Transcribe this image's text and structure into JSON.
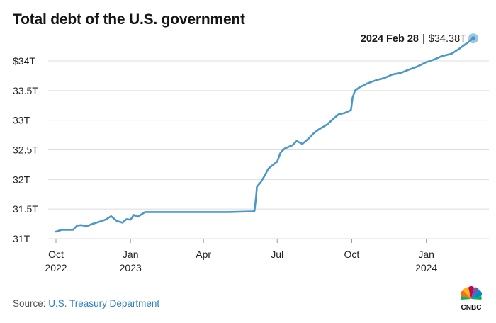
{
  "title": "Total debt of the U.S. government",
  "source": {
    "label": "Source:",
    "org": "U.S. Treasury Department"
  },
  "logo": {
    "text": "CNBC"
  },
  "chart_data": {
    "type": "line",
    "title": "Total debt of the U.S. government",
    "xlabel": "",
    "ylabel": "",
    "y_ticks": [
      31,
      31.5,
      32,
      32.5,
      33,
      33.5,
      34
    ],
    "y_tick_labels": [
      "31T",
      "31.5T",
      "32T",
      "32.5T",
      "33T",
      "33.5T",
      "$34T"
    ],
    "ylim": [
      30.85,
      34.45
    ],
    "xlim": [
      "2022-10-01",
      "2024-02-28"
    ],
    "x_ticks": [
      {
        "date": "2022-10-01",
        "label": "Oct",
        "year": "2022"
      },
      {
        "date": "2023-01-01",
        "label": "Jan",
        "year": "2023"
      },
      {
        "date": "2023-04-01",
        "label": "Apr",
        "year": ""
      },
      {
        "date": "2023-07-01",
        "label": "Jul",
        "year": ""
      },
      {
        "date": "2023-10-01",
        "label": "Oct",
        "year": ""
      },
      {
        "date": "2024-01-01",
        "label": "Jan",
        "year": "2024"
      }
    ],
    "grid": true,
    "line_color": "#4a97c9",
    "series": [
      {
        "x": [
          "2022-10-01",
          "2022-10-08",
          "2022-10-22",
          "2022-10-27",
          "2022-11-01",
          "2022-11-08",
          "2022-11-15",
          "2022-11-22",
          "2022-12-01",
          "2022-12-08",
          "2022-12-15",
          "2022-12-22",
          "2022-12-27",
          "2023-01-01",
          "2023-01-05",
          "2023-01-10",
          "2023-01-19",
          "2023-02-01",
          "2023-03-01",
          "2023-04-01",
          "2023-05-01",
          "2023-06-01",
          "2023-06-03",
          "2023-06-05",
          "2023-06-06",
          "2023-06-10",
          "2023-06-15",
          "2023-06-20",
          "2023-06-25",
          "2023-07-01",
          "2023-07-05",
          "2023-07-10",
          "2023-07-15",
          "2023-07-20",
          "2023-07-25",
          "2023-08-01",
          "2023-08-08",
          "2023-08-15",
          "2023-08-22",
          "2023-09-01",
          "2023-09-08",
          "2023-09-15",
          "2023-09-22",
          "2023-09-30",
          "2023-10-02",
          "2023-10-05",
          "2023-10-10",
          "2023-10-20",
          "2023-11-01",
          "2023-11-10",
          "2023-11-20",
          "2023-12-01",
          "2023-12-10",
          "2023-12-20",
          "2024-01-01",
          "2024-01-10",
          "2024-01-20",
          "2024-02-01",
          "2024-02-10",
          "2024-02-20",
          "2024-02-28"
        ],
        "y": [
          31.12,
          31.15,
          31.15,
          31.22,
          31.23,
          31.21,
          31.25,
          31.28,
          31.32,
          31.38,
          31.3,
          31.27,
          31.33,
          31.32,
          31.4,
          31.37,
          31.45,
          31.45,
          31.45,
          31.45,
          31.45,
          31.46,
          31.47,
          31.72,
          31.88,
          31.94,
          32.05,
          32.18,
          32.24,
          32.3,
          32.45,
          32.52,
          32.55,
          32.58,
          32.65,
          32.6,
          32.68,
          32.78,
          32.85,
          32.93,
          33.02,
          33.1,
          33.12,
          33.17,
          33.38,
          33.5,
          33.55,
          33.62,
          33.68,
          33.71,
          33.77,
          33.8,
          33.85,
          33.9,
          33.98,
          34.02,
          34.08,
          34.12,
          34.2,
          34.3,
          34.38
        ]
      }
    ],
    "annotation": {
      "date_label": "2024 Feb 28",
      "separator": "|",
      "value_label": "$34.38T",
      "x": "2024-02-28",
      "y": 34.38
    }
  }
}
